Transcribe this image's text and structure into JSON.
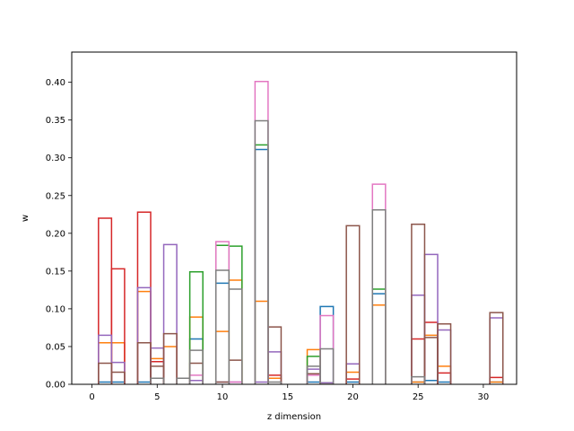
{
  "chart_data": {
    "type": "bar",
    "style": "step-histogram",
    "title": "",
    "xlabel": "z dimension",
    "ylabel": "w",
    "xlim": [
      -1.55,
      32.55
    ],
    "ylim": [
      0,
      0.44
    ],
    "xticks": [
      0,
      5,
      10,
      15,
      20,
      25,
      30
    ],
    "xtick_labels": [
      "0",
      "5",
      "10",
      "15",
      "20",
      "25",
      "30"
    ],
    "yticks": [
      0.0,
      0.05,
      0.1,
      0.15,
      0.2,
      0.25,
      0.3,
      0.35,
      0.4
    ],
    "ytick_labels": [
      "0.00",
      "0.05",
      "0.10",
      "0.15",
      "0.20",
      "0.25",
      "0.30",
      "0.35",
      "0.40"
    ],
    "grid": false,
    "legend": "none",
    "x": [
      0,
      1,
      2,
      3,
      4,
      5,
      6,
      7,
      8,
      9,
      10,
      11,
      12,
      13,
      14,
      15,
      16,
      17,
      18,
      19,
      20,
      21,
      22,
      23,
      24,
      25,
      26,
      27,
      28,
      29,
      30,
      31
    ],
    "series": [
      {
        "color": "#1f77b4",
        "values": [
          0,
          0.003,
          0.003,
          0,
          0.003,
          0.008,
          0,
          0,
          0.06,
          0,
          0.134,
          0,
          0,
          0.311,
          0,
          0,
          0,
          0.003,
          0.103,
          0,
          0.003,
          0,
          0.12,
          0,
          0,
          0.003,
          0.005,
          0.003,
          0,
          0,
          0,
          0.003
        ]
      },
      {
        "color": "#ff7f0e",
        "values": [
          0,
          0.055,
          0.055,
          0,
          0.123,
          0.034,
          0.05,
          0,
          0.089,
          0,
          0.07,
          0.138,
          0,
          0.11,
          0.008,
          0,
          0,
          0.046,
          0.002,
          0,
          0.016,
          0,
          0.105,
          0,
          0,
          0.003,
          0.065,
          0.024,
          0,
          0,
          0,
          0.003
        ]
      },
      {
        "color": "#2ca02c",
        "values": [
          0,
          0,
          0,
          0,
          0,
          0,
          0,
          0,
          0.149,
          0,
          0.184,
          0.183,
          0,
          0.317,
          0,
          0,
          0,
          0.037,
          0.002,
          0,
          0,
          0,
          0.126,
          0,
          0,
          0,
          0,
          0,
          0,
          0,
          0,
          0
        ]
      },
      {
        "color": "#d62728",
        "values": [
          0,
          0.22,
          0.153,
          0,
          0.228,
          0.03,
          0,
          0,
          0,
          0,
          0,
          0,
          0,
          0,
          0.012,
          0,
          0,
          0,
          0,
          0,
          0.007,
          0,
          0,
          0,
          0,
          0.06,
          0.082,
          0.015,
          0,
          0,
          0,
          0.009
        ]
      },
      {
        "color": "#9467bd",
        "values": [
          0,
          0.065,
          0.029,
          0,
          0.128,
          0.048,
          0.185,
          0,
          0.005,
          0,
          0.003,
          0.003,
          0,
          0.003,
          0.043,
          0,
          0,
          0.02,
          0.002,
          0,
          0.027,
          0,
          0,
          0,
          0,
          0.118,
          0.172,
          0.072,
          0,
          0,
          0,
          0.088
        ]
      },
      {
        "color": "#8c564b",
        "values": [
          0,
          0.028,
          0.016,
          0,
          0.055,
          0.024,
          0.067,
          0,
          0.028,
          0,
          0.003,
          0.032,
          0,
          0,
          0.076,
          0,
          0,
          0.014,
          0,
          0,
          0.21,
          0,
          0,
          0,
          0,
          0.212,
          0.062,
          0.08,
          0,
          0,
          0,
          0.095
        ]
      },
      {
        "color": "#e377c2",
        "values": [
          0,
          0,
          0,
          0,
          0,
          0,
          0,
          0,
          0.012,
          0,
          0.189,
          0.003,
          0,
          0.401,
          0,
          0,
          0,
          0.012,
          0.091,
          0,
          0,
          0,
          0.265,
          0,
          0,
          0,
          0,
          0,
          0,
          0,
          0,
          0
        ]
      },
      {
        "color": "#7f7f7f",
        "values": [
          0,
          0,
          0,
          0,
          0,
          0.008,
          0,
          0.008,
          0.045,
          0,
          0.151,
          0.126,
          0,
          0.349,
          0.003,
          0,
          0,
          0.024,
          0.047,
          0,
          0,
          0,
          0.231,
          0,
          0,
          0.01,
          0,
          0,
          0,
          0,
          0,
          0
        ]
      }
    ]
  }
}
